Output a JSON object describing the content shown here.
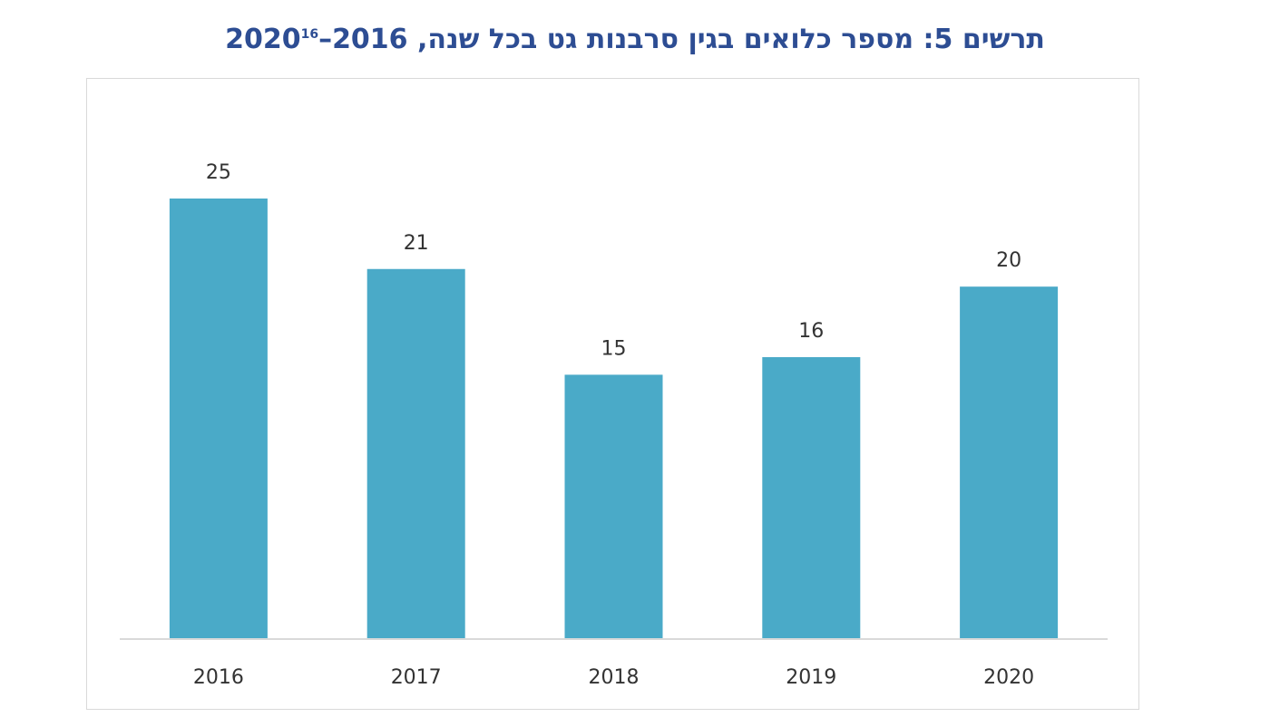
{
  "chart_title": {
    "text": "תרשים 5: מספר כלואים בגין סרבנות גט בכל שנה, 2016–2020",
    "footnote": "16"
  },
  "chart_data": {
    "type": "bar",
    "title": "תרשים 5: מספר כלואים בגין סרבנות גט בכל שנה, 2016–2020",
    "categories": [
      "2016",
      "2017",
      "2018",
      "2019",
      "2020"
    ],
    "values": [
      25,
      21,
      15,
      16,
      20
    ],
    "data_labels": [
      "25",
      "21",
      "15",
      "16",
      "20"
    ],
    "xlabel": "",
    "ylabel": "",
    "ylim": [
      0,
      25
    ],
    "grid": false,
    "legend": "none",
    "bar_color": "#4aaac8",
    "axis_color": "#d9d9d9",
    "title_color": "#2d4d93",
    "text_color": "#333333"
  }
}
